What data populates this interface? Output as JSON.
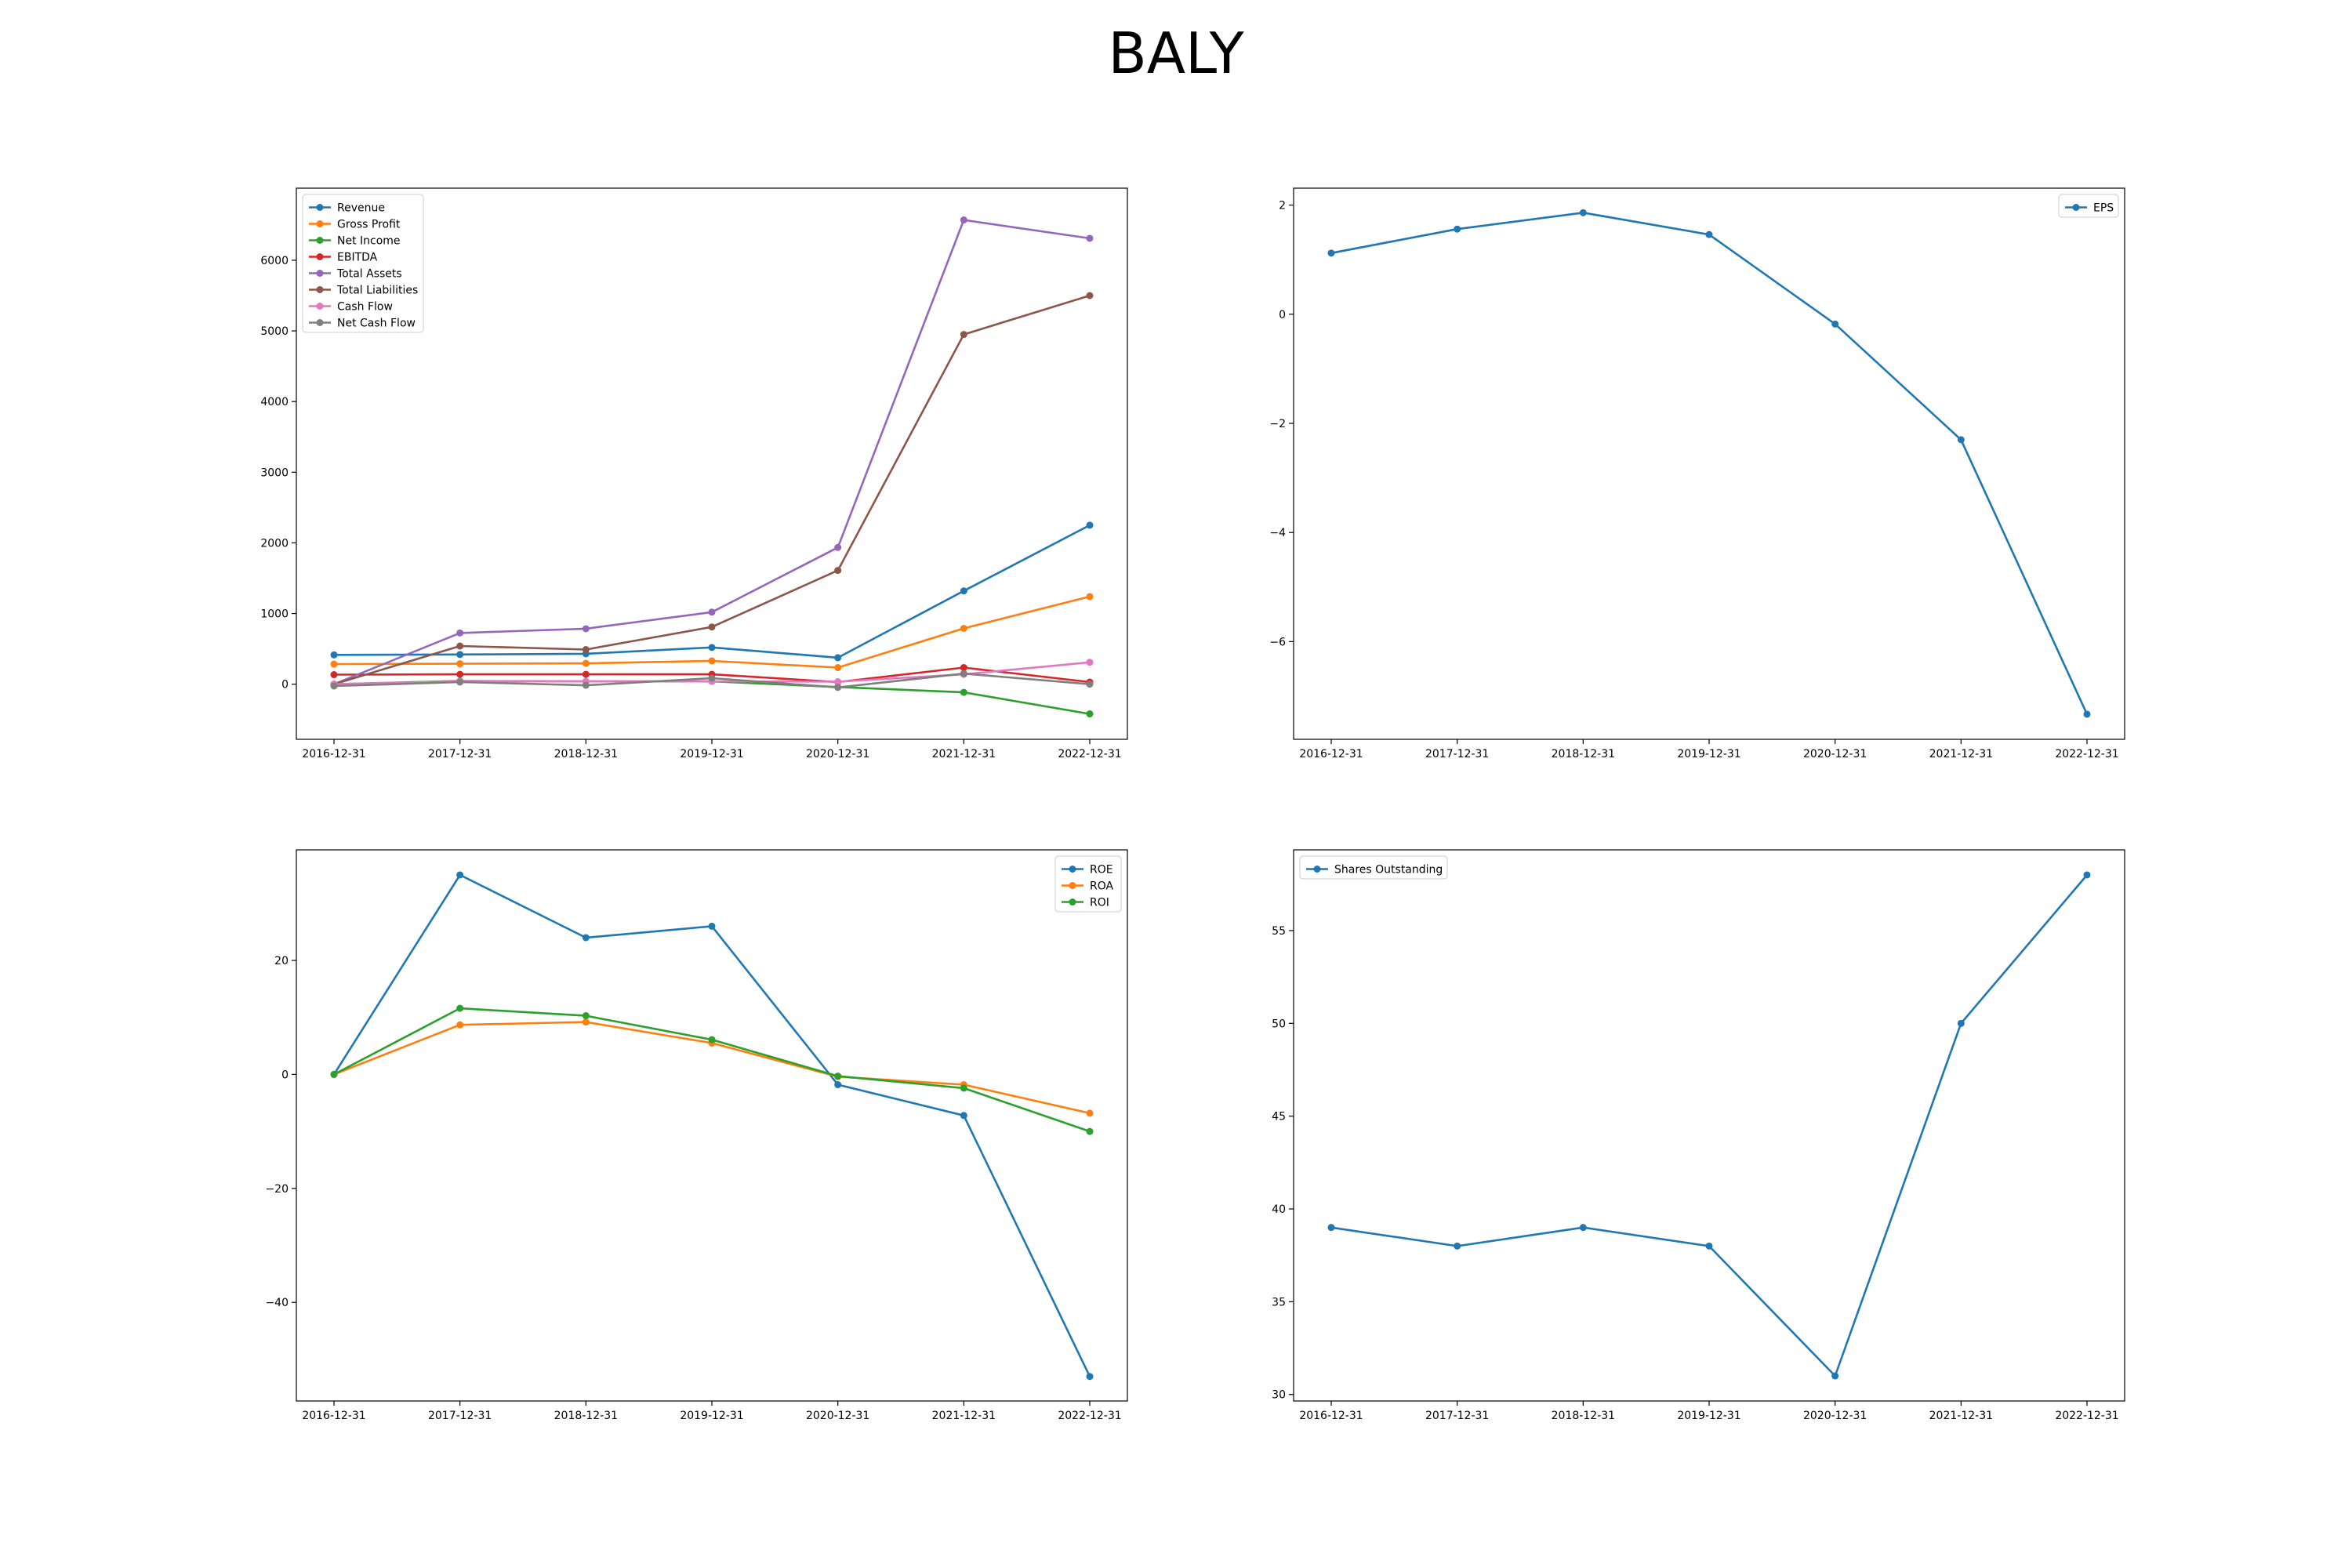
{
  "title": "BALY",
  "chart_data": [
    {
      "type": "line",
      "categories": [
        "2016-12-31",
        "2017-12-31",
        "2018-12-31",
        "2019-12-31",
        "2020-12-31",
        "2021-12-31",
        "2022-12-31"
      ],
      "ylim": [
        -780,
        7020
      ],
      "yticks": [
        0,
        1000,
        2000,
        3000,
        4000,
        5000,
        6000
      ],
      "legend_position": "top-left",
      "series": [
        {
          "name": "Revenue",
          "color": "#1f77b4",
          "values": [
            415,
            420,
            430,
            520,
            375,
            1320,
            2250
          ]
        },
        {
          "name": "Gross Profit",
          "color": "#ff7f0e",
          "values": [
            285,
            290,
            295,
            330,
            235,
            790,
            1240
          ]
        },
        {
          "name": "Net Income",
          "color": "#2ca02c",
          "values": [
            0,
            45,
            40,
            40,
            -40,
            -115,
            -420
          ]
        },
        {
          "name": "EBITDA",
          "color": "#d62728",
          "values": [
            135,
            140,
            140,
            140,
            30,
            235,
            30
          ]
        },
        {
          "name": "Total Assets",
          "color": "#9467bd",
          "values": [
            0,
            725,
            785,
            1020,
            1935,
            6570,
            6310
          ]
        },
        {
          "name": "Total Liabilities",
          "color": "#8c564b",
          "values": [
            0,
            540,
            490,
            810,
            1610,
            4950,
            5500
          ]
        },
        {
          "name": "Cash Flow",
          "color": "#e377c2",
          "values": [
            0,
            40,
            40,
            40,
            35,
            140,
            310
          ]
        },
        {
          "name": "Net Cash Flow",
          "color": "#7f7f7f",
          "values": [
            -25,
            30,
            -15,
            85,
            -45,
            150,
            0
          ]
        }
      ]
    },
    {
      "type": "line",
      "categories": [
        "2016-12-31",
        "2017-12-31",
        "2018-12-31",
        "2019-12-31",
        "2020-12-31",
        "2021-12-31",
        "2022-12-31"
      ],
      "ylim": [
        -7.79,
        2.31
      ],
      "yticks": [
        -6,
        -4,
        -2,
        0,
        2
      ],
      "legend_position": "top-right",
      "series": [
        {
          "name": "EPS",
          "color": "#1f77b4",
          "values": [
            1.12,
            1.56,
            1.86,
            1.46,
            -0.18,
            -2.3,
            -7.33
          ]
        }
      ]
    },
    {
      "type": "line",
      "categories": [
        "2016-12-31",
        "2017-12-31",
        "2018-12-31",
        "2019-12-31",
        "2020-12-31",
        "2021-12-31",
        "2022-12-31"
      ],
      "ylim": [
        -57.3,
        39.4
      ],
      "yticks": [
        -40,
        -20,
        0,
        20
      ],
      "legend_position": "top-right",
      "series": [
        {
          "name": "ROE",
          "color": "#1f77b4",
          "values": [
            0,
            35,
            24,
            26,
            -1.8,
            -7.2,
            -53
          ]
        },
        {
          "name": "ROA",
          "color": "#ff7f0e",
          "values": [
            0,
            8.7,
            9.2,
            5.5,
            -0.4,
            -1.8,
            -6.8
          ]
        },
        {
          "name": "ROI",
          "color": "#2ca02c",
          "values": [
            0,
            11.6,
            10.3,
            6.1,
            -0.3,
            -2.4,
            -10
          ]
        }
      ]
    },
    {
      "type": "line",
      "categories": [
        "2016-12-31",
        "2017-12-31",
        "2018-12-31",
        "2019-12-31",
        "2020-12-31",
        "2021-12-31",
        "2022-12-31"
      ],
      "ylim": [
        29.65,
        59.35
      ],
      "yticks": [
        30,
        35,
        40,
        45,
        50,
        55
      ],
      "legend_position": "top-left",
      "series": [
        {
          "name": "Shares Outstanding",
          "color": "#1f77b4",
          "values": [
            39,
            38,
            39,
            38,
            31,
            50,
            58
          ]
        }
      ]
    }
  ]
}
